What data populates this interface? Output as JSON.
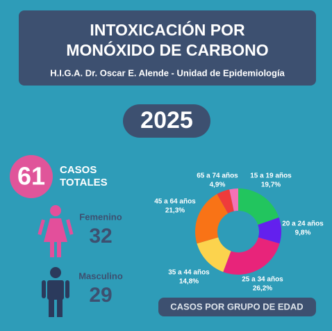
{
  "header": {
    "title_lines": [
      "INTOXICACIÓN POR",
      "MONÓXIDO DE CARBONO"
    ],
    "subtitle": "H.I.G.A. Dr. Oscar E. Alende - Unidad de Epidemiología"
  },
  "year": "2025",
  "totals": {
    "count": 61,
    "label_lines": [
      "CASOS",
      "TOTALES"
    ]
  },
  "sex": [
    {
      "label": "Femenino",
      "count": 32
    },
    {
      "label": "Masculino",
      "count": 29
    }
  ],
  "chart_data": {
    "type": "pie",
    "title": "CASOS POR GRUPO DE EDAD",
    "categories": [
      "15 a 19 años",
      "20 a 24 años",
      "25 a 34 años",
      "35 a 44 años",
      "45 a 64 años",
      "65 a 74 años",
      null
    ],
    "values": [
      19.7,
      9.8,
      26.2,
      14.8,
      21.3,
      4.9,
      3.3
    ],
    "value_labels": [
      "19,7%",
      "9,8%",
      "26,2%",
      "14,8%",
      "21,3%",
      "4,9%",
      null
    ],
    "colors": [
      "#22c55e",
      "#6320ee",
      "#e8247a",
      "#fcd34d",
      "#f97316",
      "#ef3b3b",
      "#f472b6"
    ]
  }
}
